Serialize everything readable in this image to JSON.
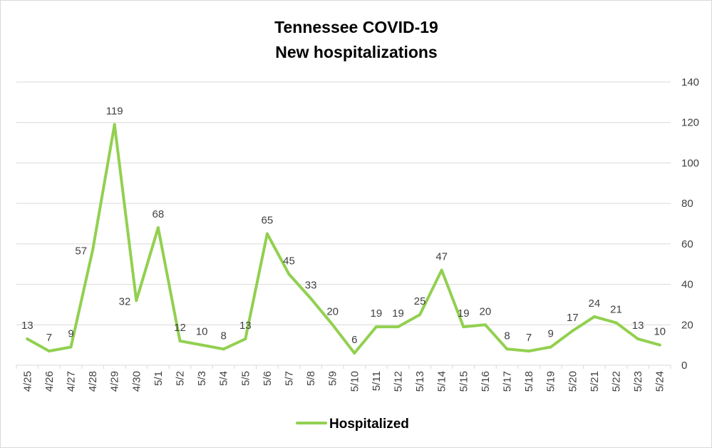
{
  "chart_data": {
    "type": "line",
    "title_lines": [
      "Tennessee COVID-19",
      "New hospitalizations"
    ],
    "categories": [
      "4/25",
      "4/26",
      "4/27",
      "4/28",
      "4/29",
      "4/30",
      "5/1",
      "5/2",
      "5/3",
      "5/4",
      "5/5",
      "5/6",
      "5/7",
      "5/8",
      "5/9",
      "5/10",
      "5/11",
      "5/12",
      "5/13",
      "5/14",
      "5/15",
      "5/16",
      "5/17",
      "5/18",
      "5/19",
      "5/20",
      "5/21",
      "5/22",
      "5/23",
      "5/24"
    ],
    "series": [
      {
        "name": "Hospitalized",
        "color": "#92d050",
        "values": [
          13,
          7,
          9,
          57,
          119,
          32,
          68,
          12,
          10,
          8,
          13,
          65,
          45,
          33,
          20,
          6,
          19,
          19,
          25,
          47,
          19,
          20,
          8,
          7,
          9,
          17,
          24,
          21,
          13,
          10
        ]
      }
    ],
    "y_ticks": [
      "0",
      "20",
      "40",
      "60",
      "80",
      "100",
      "120",
      "140"
    ],
    "ylim": [
      0,
      140
    ],
    "y_axis_side": "right",
    "grid": true,
    "legend": "bottom"
  }
}
